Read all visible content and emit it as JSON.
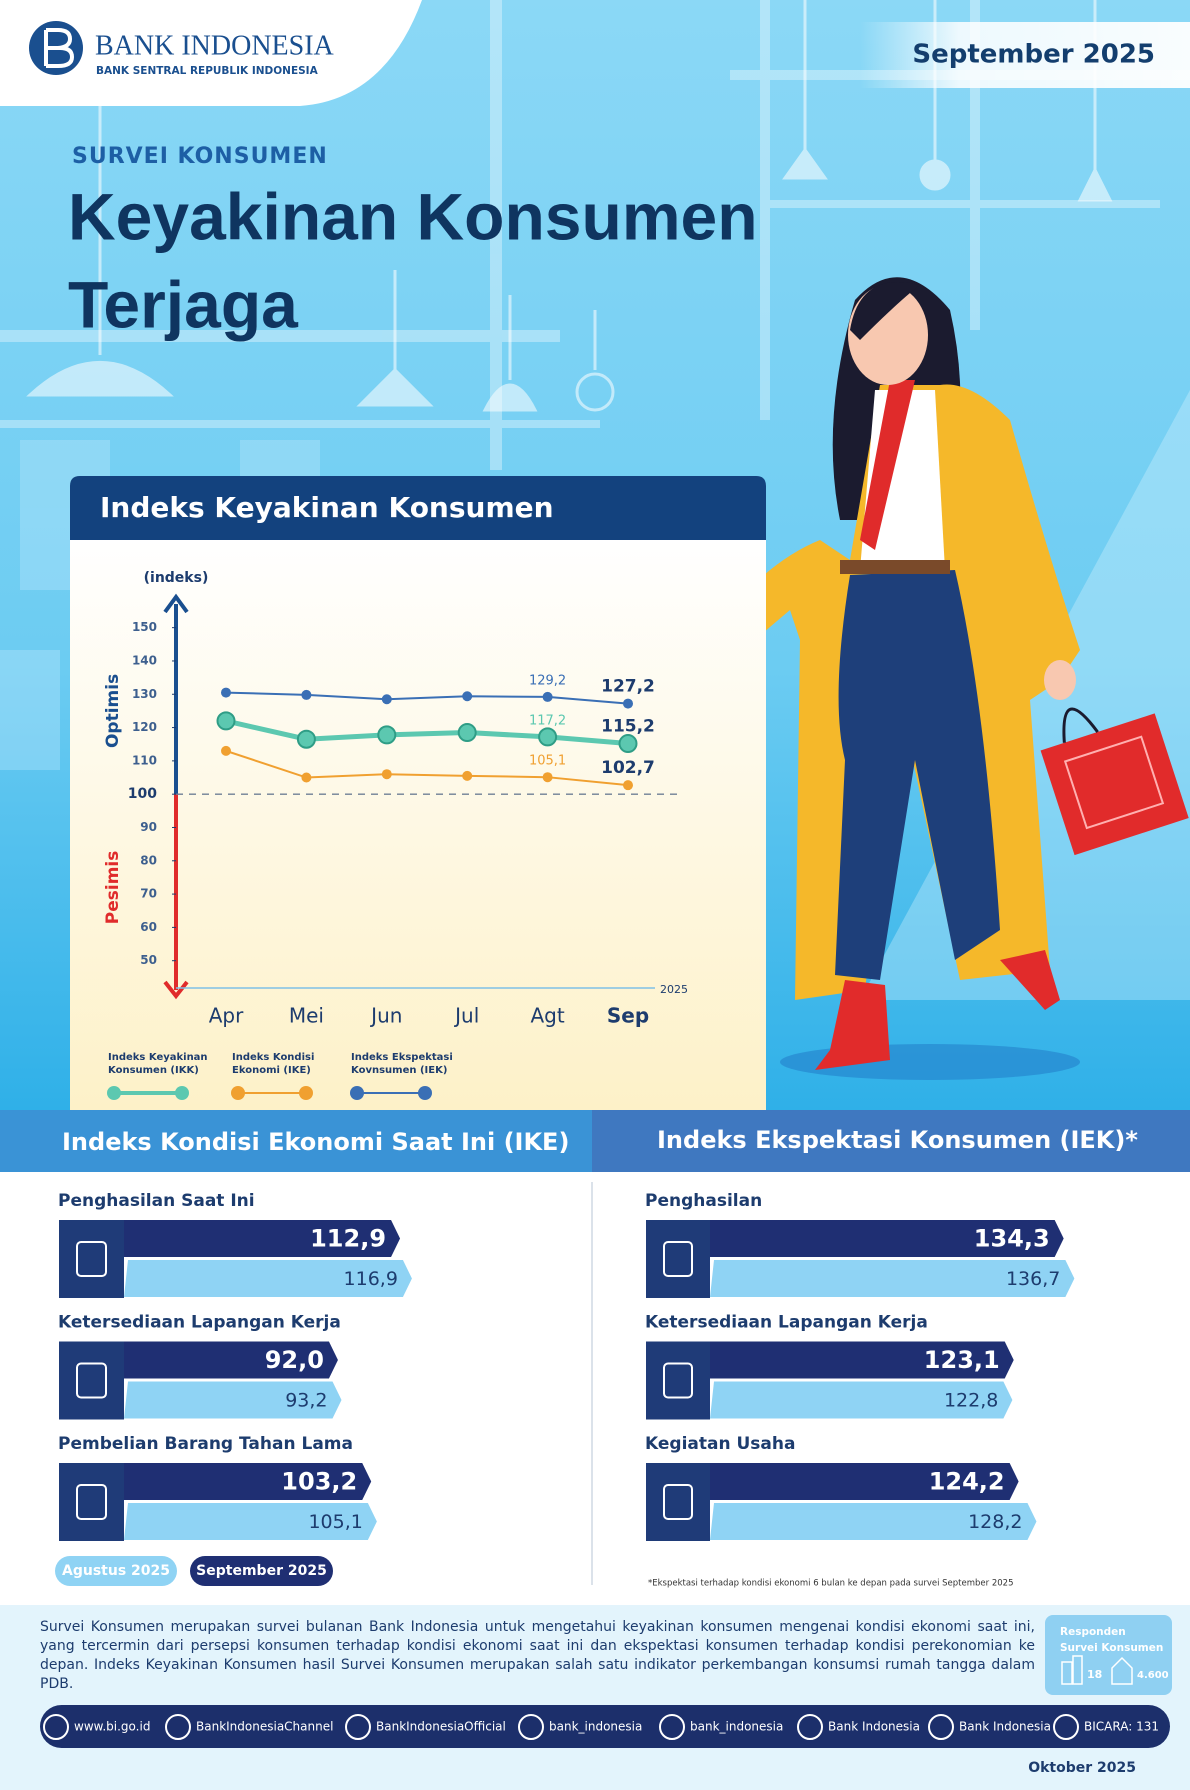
{
  "header": {
    "logo_title": "BANK INDONESIA",
    "logo_subtitle": "BANK SENTRAL REPUBLIK INDONESIA",
    "period": "September 2025",
    "kicker": "SURVEI KONSUMEN",
    "title_lines": [
      "Keyakinan Konsumen",
      "Terjaga"
    ]
  },
  "chart_data": {
    "type": "line",
    "title": "Indeks Keyakinan Konsumen",
    "y_label": "(indeks)",
    "x_label": "2025",
    "zone_labels": {
      "upper": "Optimis",
      "lower": "Pesimis"
    },
    "threshold": 100,
    "categories": [
      "Apr",
      "Mei",
      "Jun",
      "Jul",
      "Agt",
      "Sep"
    ],
    "series": [
      {
        "name": "Indeks Keyakinan Konsumen (IKK)",
        "color": "#5cc8b0",
        "values": [
          122,
          116.5,
          117.8,
          118.5,
          117.2,
          115.2
        ],
        "value_labels": [
          null,
          null,
          null,
          null,
          "117,2",
          "115,2"
        ]
      },
      {
        "name": "Indeks Kondisi Ekonomi (IKE)",
        "color": "#f0a030",
        "values": [
          113,
          105,
          106,
          105.5,
          105.1,
          102.7
        ],
        "value_labels": [
          null,
          null,
          null,
          null,
          "105,1",
          "102,7"
        ]
      },
      {
        "name": "Indeks Ekspektasi Kovnsumen (IEK)",
        "color": "#3a6fb5",
        "values": [
          130.5,
          129.8,
          128.5,
          129.4,
          129.2,
          127.2
        ],
        "value_labels": [
          null,
          null,
          null,
          null,
          "129,2",
          "127,2"
        ]
      }
    ],
    "ylim": [
      40,
      155
    ],
    "yticks": [
      50,
      60,
      70,
      80,
      90,
      100,
      110,
      120,
      130,
      140,
      150
    ],
    "legend": "bottom"
  },
  "periods": [
    {
      "name": "September 2025",
      "color": "#1f2f73"
    },
    {
      "name": "Agustus 2025",
      "color": "#8fd3f4"
    }
  ],
  "ike": {
    "title": "Indeks Kondisi Ekonomi Saat Ini (IKE)",
    "xlim": [
      20,
      160
    ],
    "items": [
      {
        "label": "Penghasilan Saat Ini",
        "values": [
          112.9,
          116.9
        ],
        "value_labels": [
          "112,9",
          "116,9"
        ]
      },
      {
        "label": "Ketersediaan Lapangan Kerja",
        "values": [
          92.0,
          93.2
        ],
        "value_labels": [
          "92,0",
          "93,2"
        ]
      },
      {
        "label": "Pembelian Barang Tahan Lama",
        "values": [
          103.2,
          105.1
        ],
        "value_labels": [
          "103,2",
          "105,1"
        ]
      }
    ]
  },
  "iek": {
    "title": "Indeks Ekspektasi Konsumen (IEK)*",
    "xlim": [
      55,
      155
    ],
    "items": [
      {
        "label": "Penghasilan",
        "values": [
          134.3,
          136.7
        ],
        "value_labels": [
          "134,3",
          "136,7"
        ]
      },
      {
        "label": "Ketersediaan Lapangan Kerja",
        "values": [
          123.1,
          122.8
        ],
        "value_labels": [
          "123,1",
          "122,8"
        ]
      },
      {
        "label": "Kegiatan Usaha",
        "values": [
          124.2,
          128.2
        ],
        "value_labels": [
          "124,2",
          "128,2"
        ]
      }
    ],
    "footnote": "*Ekspektasi terhadap kondisi ekonomi 6 bulan ke depan pada survei September 2025"
  },
  "footer": {
    "description": "Survei Konsumen merupakan survei bulanan Bank Indonesia untuk mengetahui keyakinan konsumen mengenai kondisi ekonomi saat ini, yang tercermin dari persepsi konsumen terhadap kondisi ekonomi saat ini dan ekspektasi konsumen terhadap kondisi perekonomian ke depan. Indeks Keyakinan Konsumen hasil Survei Konsumen merupakan salah satu indikator perkembangan konsumsi rumah tangga dalam PDB.",
    "respondents": {
      "title_lines": [
        "Responden",
        "Survei Konsumen"
      ],
      "cities": "18",
      "households": "4.600"
    },
    "socials": [
      "www.bi.go.id",
      "BankIndonesiaChannel",
      "BankIndonesiaOfficial",
      "bank_indonesia",
      "bank_indonesia",
      "Bank Indonesia",
      "Bank Indonesia",
      "BICARA: 131"
    ],
    "date": "Oktober 2025"
  }
}
